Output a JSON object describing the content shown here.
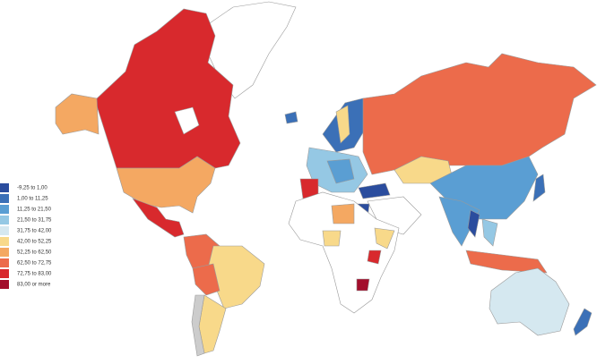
{
  "legend": {
    "items": [
      {
        "label": "-9,25 to 1,00",
        "color": "#2b4d9e"
      },
      {
        "label": "1,00 to 11,25",
        "color": "#3b70b7"
      },
      {
        "label": "11,25 to 21,50",
        "color": "#5a9ed3"
      },
      {
        "label": "21,50 to 31,75",
        "color": "#95c8e4"
      },
      {
        "label": "31,75 to 42,00",
        "color": "#d5e8f0"
      },
      {
        "label": "42,00 to 52,25",
        "color": "#f8d98a"
      },
      {
        "label": "52,25 to 62,50",
        "color": "#f4a862"
      },
      {
        "label": "62,50 to 72,75",
        "color": "#ec6b4b"
      },
      {
        "label": "72,75 to 83,00",
        "color": "#d8282c"
      },
      {
        "label": "83,00 or more",
        "color": "#a30e2c"
      }
    ]
  }
}
